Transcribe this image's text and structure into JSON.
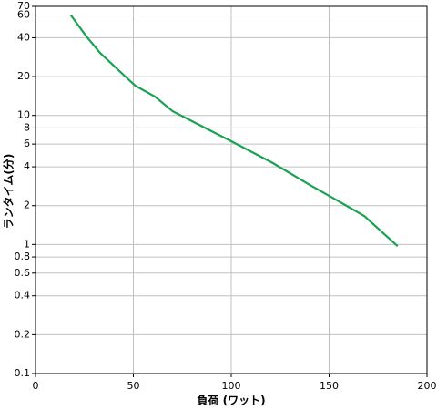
{
  "chart_data": {
    "type": "line",
    "x_label": "負荷 (ワット)",
    "y_label": "ランタイム(分)",
    "xlim": [
      0,
      200
    ],
    "xticks": [
      0,
      50,
      100,
      150,
      200
    ],
    "ylim": [
      0.1,
      70
    ],
    "yticks": [
      0.1,
      0.2,
      0.4,
      0.6,
      0.8,
      1,
      2,
      4,
      6,
      8,
      10,
      20,
      40,
      60,
      70
    ],
    "ylog": true,
    "grid": true,
    "series": [
      {
        "color": "#1aa152",
        "x": [
          18,
          26,
          33,
          45,
          51,
          61,
          70,
          82,
          101,
          121,
          140,
          154,
          168,
          185
        ],
        "values": [
          60,
          41,
          30.5,
          20.6,
          17,
          14,
          10.8,
          8.7,
          6.2,
          4.3,
          2.9,
          2.2,
          1.66,
          0.97
        ]
      }
    ]
  }
}
